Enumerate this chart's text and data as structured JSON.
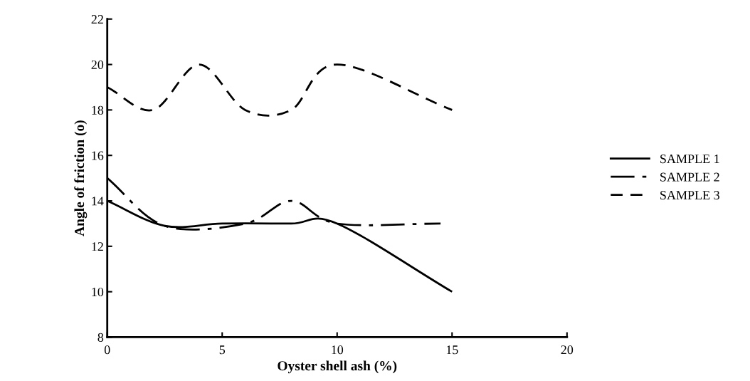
{
  "chart_data": {
    "type": "line",
    "xlabel": "Oyster shell ash (%)",
    "ylabel": "Angle of friction (o)",
    "xlim": [
      0,
      20
    ],
    "xticks": [
      0,
      5,
      10,
      15,
      20
    ],
    "ylim": [
      8,
      22
    ],
    "yticks": [
      8,
      10,
      12,
      14,
      16,
      18,
      20,
      22
    ],
    "grid": false,
    "legend": "right",
    "marker": "none",
    "series": [
      {
        "name": "SAMPLE 1",
        "color": "#000000",
        "line_style": "solid",
        "x": [
          0,
          2.5,
          5,
          8,
          10,
          15
        ],
        "values": [
          14,
          12.9,
          13,
          13,
          13,
          10
        ]
      },
      {
        "name": "SAMPLE 2",
        "color": "#000000",
        "line_style": "dashdot",
        "x": [
          0,
          2.5,
          6,
          8,
          10,
          14.5
        ],
        "values": [
          15,
          12.9,
          13,
          14,
          13,
          13
        ]
      },
      {
        "name": "SAMPLE 3",
        "color": "#000000",
        "line_style": "dashed",
        "x": [
          0,
          2,
          4,
          6,
          8,
          10,
          15
        ],
        "values": [
          19,
          18,
          20,
          18,
          18,
          20,
          18
        ]
      }
    ]
  }
}
